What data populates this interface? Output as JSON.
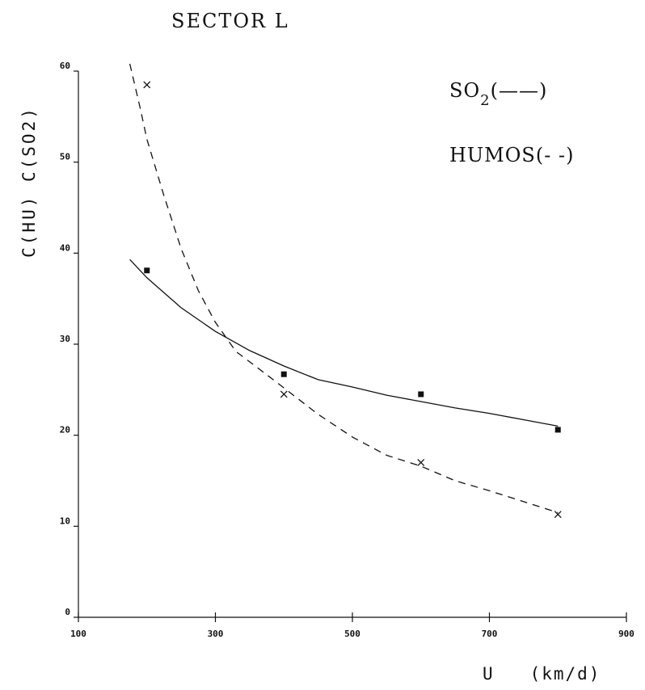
{
  "chart_data": {
    "type": "line",
    "title": "SECTOR L",
    "xlabel": "U   (km/d)",
    "ylabel": "C(HU)  C(SO2)",
    "xlim": [
      100,
      900
    ],
    "ylim": [
      0,
      60
    ],
    "x_ticks": [
      100,
      300,
      500,
      700,
      900
    ],
    "x_tick_labels": [
      "100",
      "300",
      "500",
      "700",
      "900"
    ],
    "y_ticks": [
      0,
      10,
      20,
      30,
      40,
      50,
      60
    ],
    "y_tick_labels": [
      "0",
      "10",
      "20",
      "30",
      "40",
      "50",
      "60"
    ],
    "grid": false,
    "legend_placement": "top-right",
    "legend": {
      "so2": {
        "base": "SO",
        "sub": "2",
        "marker": "(——)"
      },
      "humos": {
        "base": "HUMOS",
        "marker": "(- -)"
      }
    },
    "series": [
      {
        "key": "SO2",
        "style": "solid",
        "marker": "square",
        "points": [
          [
            200,
            38.1
          ],
          [
            400,
            26.7
          ],
          [
            600,
            24.5
          ],
          [
            800,
            20.6
          ]
        ],
        "curve": [
          [
            175,
            39.3
          ],
          [
            200,
            37.3
          ],
          [
            250,
            34.0
          ],
          [
            300,
            31.4
          ],
          [
            350,
            29.3
          ],
          [
            400,
            27.6
          ],
          [
            450,
            26.1
          ],
          [
            500,
            25.3
          ],
          [
            550,
            24.4
          ],
          [
            600,
            23.7
          ],
          [
            650,
            23.0
          ],
          [
            700,
            22.4
          ],
          [
            750,
            21.7
          ],
          [
            800,
            21.0
          ]
        ]
      },
      {
        "key": "HUMOS",
        "style": "dashed",
        "marker": "x",
        "points": [
          [
            200,
            58.5
          ],
          [
            400,
            24.5
          ],
          [
            600,
            17.0
          ],
          [
            800,
            11.3
          ]
        ],
        "curve": [
          [
            175,
            60.8
          ],
          [
            190,
            56.0
          ],
          [
            200,
            52.5
          ],
          [
            225,
            46.3
          ],
          [
            250,
            40.5
          ],
          [
            275,
            35.9
          ],
          [
            300,
            32.4
          ],
          [
            330,
            29.2
          ],
          [
            360,
            27.5
          ],
          [
            400,
            25.2
          ],
          [
            450,
            22.3
          ],
          [
            500,
            19.8
          ],
          [
            550,
            17.8
          ],
          [
            600,
            16.6
          ],
          [
            650,
            15.0
          ],
          [
            700,
            13.9
          ],
          [
            750,
            12.7
          ],
          [
            800,
            11.5
          ]
        ]
      }
    ]
  }
}
